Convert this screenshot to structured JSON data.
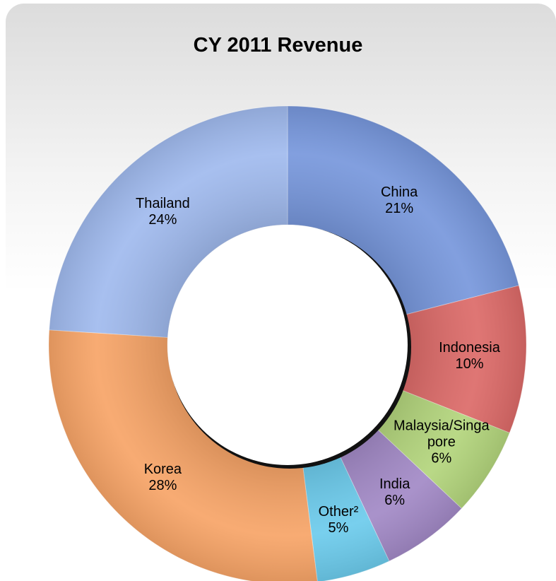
{
  "chart_data": {
    "type": "donut",
    "title": "CY 2011 Revenue",
    "categories": [
      "China",
      "Indonesia",
      "Malaysia/Singapore",
      "India",
      "Other²",
      "Korea",
      "Thailand"
    ],
    "values": [
      21,
      10,
      6,
      6,
      5,
      28,
      24
    ],
    "value_labels": [
      "21%",
      "10%",
      "6%",
      "6%",
      "5%",
      "28%",
      "24%"
    ],
    "colors": [
      "#7797dc",
      "#dc6a68",
      "#b3d57c",
      "#a289c6",
      "#6ccbec",
      "#f7a467",
      "#a0baee"
    ]
  }
}
